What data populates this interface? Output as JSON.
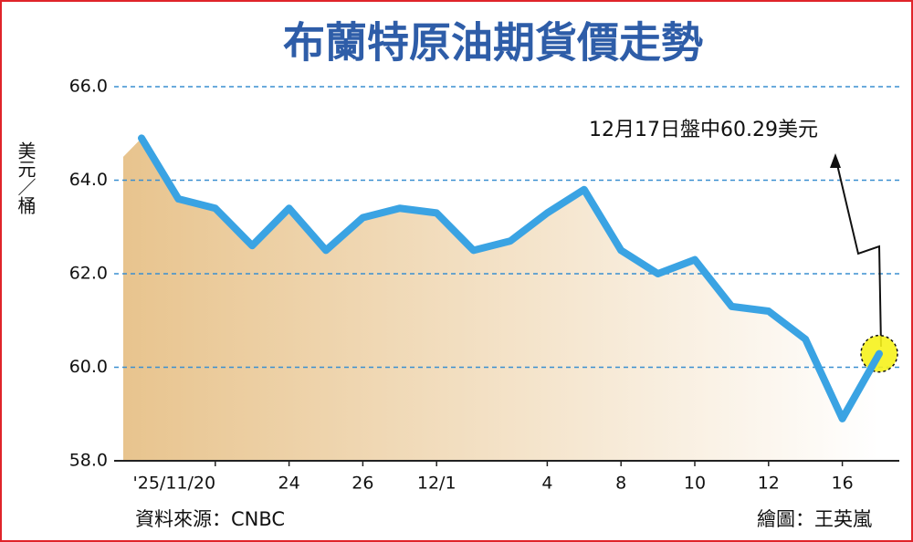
{
  "chart_data": {
    "type": "line",
    "title": "布蘭特原油期貨價走勢",
    "y_label": "美元／桶",
    "categories": [
      null,
      null,
      "'25/11/20",
      null,
      "24",
      null,
      "26",
      null,
      "12/1",
      null,
      null,
      "4",
      null,
      "8",
      null,
      "10",
      null,
      "12",
      null,
      "16",
      null
    ],
    "values": [
      64.9,
      63.6,
      63.4,
      62.6,
      63.4,
      62.5,
      63.2,
      63.4,
      63.3,
      62.5,
      62.7,
      63.3,
      63.8,
      62.5,
      62.0,
      62.3,
      61.3,
      61.2,
      60.6,
      58.9,
      60.29
    ],
    "color": "#3aa3e3",
    "ylim": [
      58,
      66
    ],
    "yticks": [
      {
        "value": 58,
        "label": "58.0"
      },
      {
        "value": 60,
        "label": "60.0"
      },
      {
        "value": 62,
        "label": "62.0"
      },
      {
        "value": 64,
        "label": "64.0"
      },
      {
        "value": 66,
        "label": "66.0"
      }
    ],
    "grid": true,
    "annotation": "12月17日盤中60.29美元",
    "source": "資料來源：CNBC",
    "credit": "繪圖：王英嵐"
  }
}
